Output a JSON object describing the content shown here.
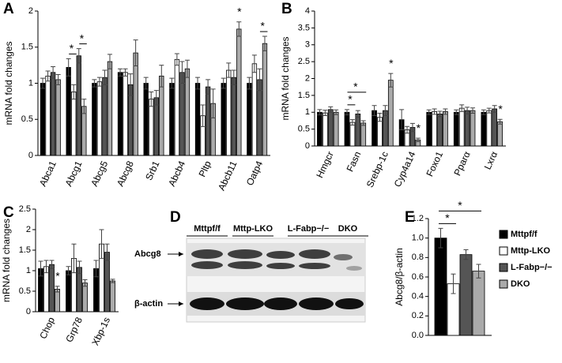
{
  "chart_data": [
    {
      "type": "bar",
      "panel": "A",
      "ylabel": "mRNA fold changes",
      "categories": [
        "Abca1",
        "Abcg1",
        "Abcg5",
        "Abcg8",
        "Srb1",
        "Abcb4",
        "Pltp",
        "Abcb11",
        "Oatp4"
      ],
      "series": [
        {
          "color": "#000000",
          "values": [
            1.0,
            1.22,
            1.0,
            1.15,
            1.0,
            1.0,
            1.0,
            1.0,
            1.0
          ],
          "errors": [
            0.07,
            0.12,
            0.05,
            0.05,
            0.08,
            0.07,
            0.08,
            0.07,
            0.08
          ]
        },
        {
          "color": "#ffffff",
          "values": [
            1.1,
            0.88,
            1.02,
            1.15,
            0.78,
            1.33,
            0.55,
            1.18,
            1.27
          ],
          "errors": [
            0.07,
            0.1,
            0.06,
            0.05,
            0.1,
            0.08,
            0.15,
            0.1,
            0.12
          ]
        },
        {
          "color": "#555555",
          "values": [
            1.15,
            1.38,
            1.08,
            0.98,
            0.8,
            1.15,
            0.95,
            1.08,
            1.05
          ],
          "errors": [
            0.08,
            0.1,
            0.1,
            0.15,
            0.1,
            0.15,
            0.1,
            0.1,
            0.15
          ]
        },
        {
          "color": "#aaaaaa",
          "values": [
            1.05,
            0.68,
            1.3,
            1.42,
            1.1,
            1.2,
            0.72,
            1.75,
            1.55
          ],
          "errors": [
            0.07,
            0.1,
            0.1,
            0.18,
            0.15,
            0.12,
            0.2,
            0.1,
            0.1
          ]
        }
      ],
      "ylim": [
        0,
        2
      ],
      "yticks": [
        0,
        0.5,
        1,
        1.5,
        2
      ],
      "annotations": [
        {
          "text": "*",
          "category": "Abcg1",
          "bars": [
            0,
            1
          ]
        },
        {
          "text": "*",
          "category": "Abcg1",
          "bars": [
            2,
            3
          ]
        },
        {
          "text": "*",
          "category": "Abcb11",
          "bars": [
            3
          ]
        },
        {
          "text": "*",
          "category": "Oatp4",
          "bars": [
            2,
            3
          ]
        }
      ]
    },
    {
      "type": "bar",
      "panel": "B",
      "ylabel": "mRNA fold changes",
      "categories": [
        "Hmgcr",
        "Fasn",
        "Srebp-1c",
        "Cyp4a14",
        "Foxo1",
        "Pparα",
        "Lxrα"
      ],
      "series": [
        {
          "color": "#000000",
          "values": [
            1.0,
            1.0,
            1.05,
            0.78,
            1.0,
            1.0,
            1.0
          ],
          "errors": [
            0.08,
            0.08,
            0.15,
            0.3,
            0.07,
            0.07,
            0.07
          ]
        },
        {
          "color": "#ffffff",
          "values": [
            0.98,
            0.7,
            0.85,
            0.48,
            1.02,
            1.12,
            1.05
          ],
          "errors": [
            0.08,
            0.08,
            0.12,
            0.1,
            0.08,
            0.1,
            0.07
          ]
        },
        {
          "color": "#555555",
          "values": [
            1.08,
            0.95,
            1.05,
            0.55,
            0.95,
            1.05,
            1.1
          ],
          "errors": [
            0.08,
            0.1,
            0.15,
            0.12,
            0.08,
            0.1,
            0.1
          ]
        },
        {
          "color": "#aaaaaa",
          "values": [
            1.0,
            0.68,
            1.95,
            0.18,
            1.02,
            1.05,
            0.72
          ],
          "errors": [
            0.07,
            0.07,
            0.2,
            0.05,
            0.08,
            0.08,
            0.07
          ]
        }
      ],
      "ylim": [
        0,
        4
      ],
      "yticks": [
        0,
        0.5,
        1,
        1.5,
        2,
        2.5,
        3,
        3.5,
        4
      ],
      "annotations": [
        {
          "text": "*",
          "category": "Fasn",
          "bars": [
            0,
            1
          ]
        },
        {
          "text": "*",
          "category": "Fasn",
          "bars": [
            0,
            3
          ]
        },
        {
          "text": "*",
          "category": "Srebp-1c",
          "bars": [
            3
          ]
        },
        {
          "text": "*",
          "category": "Cyp4a14",
          "bars": [
            3
          ]
        },
        {
          "text": "*",
          "category": "Lxrα",
          "bars": [
            3
          ]
        }
      ]
    },
    {
      "type": "bar",
      "panel": "C",
      "ylabel": "mRNA fold changes",
      "categories": [
        "Chop",
        "Grp78",
        "Xbp-1s"
      ],
      "series": [
        {
          "color": "#000000",
          "values": [
            1.05,
            1.0,
            1.05
          ],
          "errors": [
            0.18,
            0.1,
            0.2
          ]
        },
        {
          "color": "#ffffff",
          "values": [
            1.1,
            1.3,
            1.65
          ],
          "errors": [
            0.15,
            0.35,
            0.35
          ]
        },
        {
          "color": "#555555",
          "values": [
            1.15,
            1.08,
            1.45
          ],
          "errors": [
            0.1,
            0.15,
            0.2
          ]
        },
        {
          "color": "#aaaaaa",
          "values": [
            0.55,
            0.7,
            0.75
          ],
          "errors": [
            0.07,
            0.08,
            0.04
          ]
        }
      ],
      "ylim": [
        0,
        2.5
      ],
      "yticks": [
        0,
        0.5,
        1,
        1.5,
        2,
        2.5
      ],
      "annotations": [
        {
          "text": "*",
          "category": "Chop",
          "bars": [
            3
          ]
        }
      ]
    },
    {
      "type": "bar",
      "panel": "E",
      "ylabel": "Abcg8/β-actin",
      "series": [
        {
          "name": "Mttpf/f",
          "color": "#000000",
          "values": [
            1.0
          ],
          "errors": [
            0.1
          ]
        },
        {
          "name": "Mttp-LKO",
          "color": "#ffffff",
          "values": [
            0.53
          ],
          "errors": [
            0.1
          ]
        },
        {
          "name": "L-Fabp−/−",
          "color": "#555555",
          "values": [
            0.83
          ],
          "errors": [
            0.05
          ]
        },
        {
          "name": "DKO",
          "color": "#aaaaaa",
          "values": [
            0.66
          ],
          "errors": [
            0.07
          ]
        }
      ],
      "ylim": [
        0,
        1.2
      ],
      "yticks": [
        {
          "value": 0,
          "label": "0.0"
        },
        0.2,
        0.4,
        0.6,
        0.8,
        {
          "value": 1,
          "label": "1.0"
        },
        1.2
      ],
      "annotations": [
        {
          "text": "*",
          "bars": [
            0,
            1
          ]
        },
        {
          "text": "*",
          "bars": [
            0,
            3
          ]
        }
      ]
    }
  ],
  "blot": {
    "panel": "D",
    "groups": [
      "Mttpf/f",
      "Mttp-LKO",
      "L-Fabp−/−",
      "DKO"
    ],
    "bands": [
      "Abcg8",
      "β-actin"
    ]
  }
}
